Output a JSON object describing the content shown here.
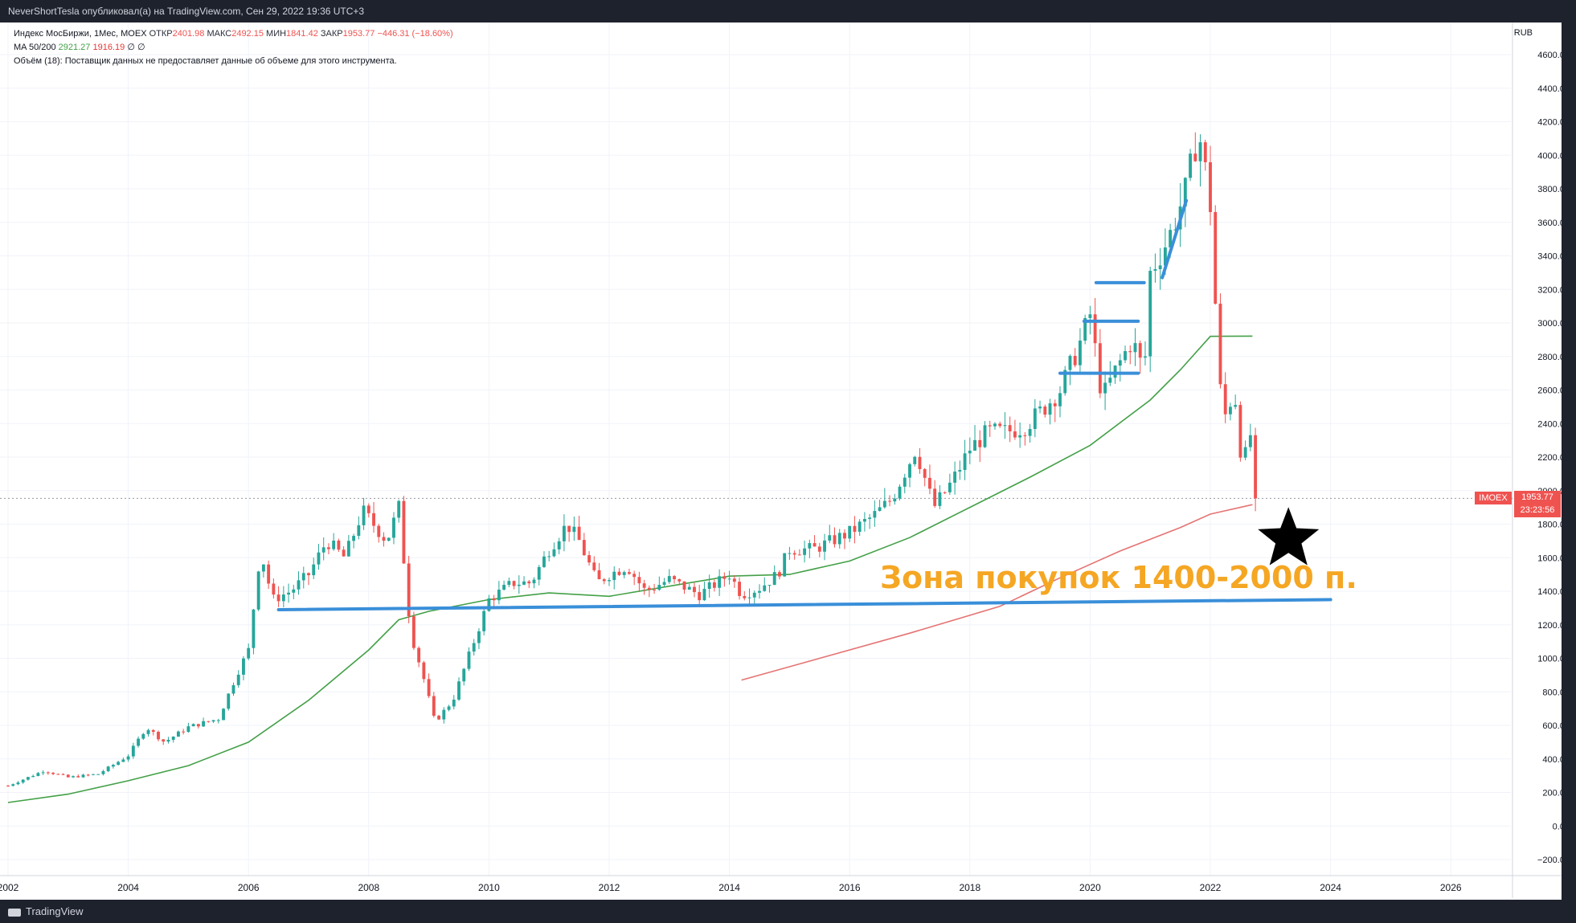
{
  "header": {
    "publish_line": "NeverShortTesla опубликовал(а) на TradingView.com, Сен 29, 2022 19:36 UTC+3"
  },
  "legend": {
    "title": "Индекс МосБиржи, 1Мес, MOEX",
    "open_label": "ОТКР",
    "open_value": "2401.98",
    "high_label": "МАКС",
    "high_value": "2492.15",
    "low_label": "МИН",
    "low_value": "1841.42",
    "close_label": "ЗАКР",
    "close_value": "1953.77",
    "change": "−446.31 (−18.60%)",
    "ma_label": "MA 50/200",
    "ma50_value": "2921.27",
    "ma200_value": "1916.19",
    "ma_extra": "∅ ∅",
    "volume_line": "Объём (18): Поставщик данных не предоставляет данные об объеме для этого инструмента."
  },
  "price_tag": {
    "symbol": "IMOEX",
    "price": "1953.77",
    "countdown": "23:23:56"
  },
  "annotation": {
    "text": "Зона покупок 1400-2000 п."
  },
  "footer": {
    "brand": "TradingView"
  },
  "colors": {
    "up": "#26a69a",
    "down": "#ef5350",
    "ma50": "#43a047",
    "ma200": "#e57373",
    "trendline": "#3a8fd9",
    "annotation": "#f5a623",
    "star": "#000000"
  },
  "chart_data": {
    "type": "candlestick",
    "symbol": "IMOEX",
    "interval": "1M",
    "currency_label": "RUB",
    "ylim": [
      -200,
      4600
    ],
    "y_ticks": [
      -200,
      0,
      200,
      400,
      600,
      800,
      1000,
      1200,
      1400,
      1600,
      1800,
      2000,
      2200,
      2400,
      2600,
      2800,
      3000,
      3200,
      3400,
      3600,
      3800,
      4000,
      4200,
      4400,
      4600
    ],
    "xlim": [
      2002.0,
      2027.0
    ],
    "x_ticks": [
      2002,
      2004,
      2006,
      2008,
      2010,
      2012,
      2014,
      2016,
      2018,
      2020,
      2022,
      2024,
      2026
    ],
    "grid": true,
    "last_close": 1953.77,
    "close_anchors": [
      [
        2002.0,
        240
      ],
      [
        2002.6,
        330
      ],
      [
        2003.0,
        290
      ],
      [
        2003.5,
        310
      ],
      [
        2004.0,
        420
      ],
      [
        2004.3,
        590
      ],
      [
        2004.6,
        500
      ],
      [
        2005.0,
        590
      ],
      [
        2005.5,
        640
      ],
      [
        2005.8,
        900
      ],
      [
        2006.0,
        1050
      ],
      [
        2006.2,
        1650
      ],
      [
        2006.4,
        1350
      ],
      [
        2006.7,
        1400
      ],
      [
        2007.0,
        1500
      ],
      [
        2007.3,
        1700
      ],
      [
        2007.6,
        1600
      ],
      [
        2007.9,
        1880
      ],
      [
        2008.3,
        1700
      ],
      [
        2008.5,
        1900
      ],
      [
        2008.7,
        1150
      ],
      [
        2008.9,
        900
      ],
      [
        2009.1,
        620
      ],
      [
        2009.4,
        750
      ],
      [
        2009.7,
        1050
      ],
      [
        2010.0,
        1350
      ],
      [
        2010.4,
        1450
      ],
      [
        2010.7,
        1450
      ],
      [
        2011.0,
        1650
      ],
      [
        2011.3,
        1800
      ],
      [
        2011.5,
        1700
      ],
      [
        2011.8,
        1450
      ],
      [
        2012.0,
        1500
      ],
      [
        2012.3,
        1550
      ],
      [
        2012.6,
        1400
      ],
      [
        2013.0,
        1470
      ],
      [
        2013.5,
        1380
      ],
      [
        2014.0,
        1500
      ],
      [
        2014.2,
        1380
      ],
      [
        2014.5,
        1420
      ],
      [
        2014.8,
        1500
      ],
      [
        2015.0,
        1650
      ],
      [
        2015.4,
        1650
      ],
      [
        2015.7,
        1700
      ],
      [
        2016.0,
        1750
      ],
      [
        2016.4,
        1850
      ],
      [
        2016.7,
        1950
      ],
      [
        2016.9,
        2100
      ],
      [
        2017.1,
        2250
      ],
      [
        2017.4,
        1900
      ],
      [
        2017.7,
        2050
      ],
      [
        2018.0,
        2250
      ],
      [
        2018.3,
        2350
      ],
      [
        2018.6,
        2350
      ],
      [
        2018.9,
        2380
      ],
      [
        2019.2,
        2480
      ],
      [
        2019.5,
        2600
      ],
      [
        2019.8,
        2850
      ],
      [
        2020.0,
        3050
      ],
      [
        2020.2,
        2550
      ],
      [
        2020.4,
        2700
      ],
      [
        2020.7,
        2900
      ],
      [
        2020.9,
        2700
      ],
      [
        2021.0,
        3300
      ],
      [
        2021.3,
        3500
      ],
      [
        2021.6,
        3800
      ],
      [
        2021.8,
        4150
      ],
      [
        2021.9,
        3950
      ],
      [
        2022.0,
        3700
      ],
      [
        2022.1,
        3000
      ],
      [
        2022.2,
        2400
      ],
      [
        2022.4,
        2600
      ],
      [
        2022.5,
        2250
      ],
      [
        2022.6,
        2200
      ],
      [
        2022.7,
        2400
      ],
      [
        2022.75,
        1953.77
      ]
    ],
    "series": [
      {
        "name": "MA 50",
        "points": [
          [
            2002.0,
            140
          ],
          [
            2003.0,
            190
          ],
          [
            2004.0,
            270
          ],
          [
            2005.0,
            360
          ],
          [
            2006.0,
            500
          ],
          [
            2007.0,
            750
          ],
          [
            2008.0,
            1050
          ],
          [
            2008.5,
            1230
          ],
          [
            2009.0,
            1280
          ],
          [
            2010.0,
            1350
          ],
          [
            2011.0,
            1390
          ],
          [
            2012.0,
            1370
          ],
          [
            2013.0,
            1430
          ],
          [
            2014.0,
            1490
          ],
          [
            2015.0,
            1500
          ],
          [
            2016.0,
            1580
          ],
          [
            2017.0,
            1720
          ],
          [
            2018.0,
            1900
          ],
          [
            2019.0,
            2080
          ],
          [
            2020.0,
            2270
          ],
          [
            2021.0,
            2540
          ],
          [
            2021.5,
            2720
          ],
          [
            2022.0,
            2920
          ],
          [
            2022.7,
            2921.27
          ]
        ]
      },
      {
        "name": "MA 200",
        "points": [
          [
            2014.2,
            870
          ],
          [
            2015.5,
            1000
          ],
          [
            2017.0,
            1150
          ],
          [
            2018.5,
            1310
          ],
          [
            2019.5,
            1480
          ],
          [
            2020.5,
            1640
          ],
          [
            2021.5,
            1780
          ],
          [
            2022.0,
            1860
          ],
          [
            2022.7,
            1916.19
          ]
        ]
      }
    ],
    "drawn_levels": [
      {
        "name": "Buy zone support",
        "from": [
          2006.5,
          1290
        ],
        "to": [
          2024.0,
          1350
        ]
      },
      {
        "name": "Range low",
        "from": [
          2019.5,
          2700
        ],
        "to": [
          2020.8,
          2700
        ]
      },
      {
        "name": "Range mid",
        "from": [
          2019.9,
          3010
        ],
        "to": [
          2020.8,
          3010
        ]
      },
      {
        "name": "Range top",
        "from": [
          2020.1,
          3240
        ],
        "to": [
          2020.9,
          3240
        ]
      },
      {
        "name": "Rise",
        "from": [
          2021.2,
          3270
        ],
        "to": [
          2021.6,
          3730
        ]
      }
    ],
    "marker": {
      "shape": "star",
      "x": 2023.3,
      "y": 1710
    }
  }
}
